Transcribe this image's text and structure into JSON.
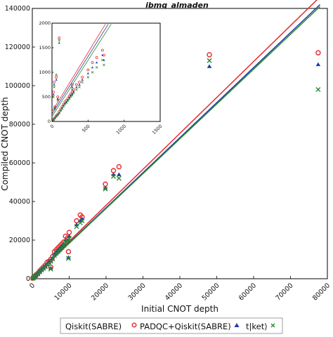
{
  "chart_data": [
    {
      "type": "scatter",
      "title": "ibmq_almaden",
      "xlabel": "Initial CNOT depth",
      "ylabel": "Compiled CNOT depth",
      "xlim": [
        0,
        80000
      ],
      "ylim": [
        0,
        140000
      ],
      "xticks": [
        "0",
        "10000",
        "20000",
        "30000",
        "40000",
        "50000",
        "60000",
        "70000",
        "80000"
      ],
      "yticks": [
        "0",
        "20000",
        "40000",
        "60000",
        "80000",
        "100000",
        "120000",
        "140000"
      ],
      "grid": false,
      "legend_position": "bottom",
      "series": [
        {
          "name": "Qiskit(SABRE)",
          "marker": "circle",
          "color": "#e8292e",
          "points": [
            [
              150,
              300
            ],
            [
              400,
              800
            ],
            [
              700,
              1300
            ],
            [
              1000,
              2000
            ],
            [
              1500,
              2800
            ],
            [
              2000,
              4000
            ],
            [
              2500,
              5000
            ],
            [
              3000,
              6000
            ],
            [
              3500,
              7000
            ],
            [
              4000,
              8500
            ],
            [
              4500,
              9000
            ],
            [
              5000,
              10000
            ],
            [
              5500,
              11500
            ],
            [
              6000,
              14000
            ],
            [
              6500,
              15000
            ],
            [
              7000,
              16000
            ],
            [
              7500,
              17000
            ],
            [
              8000,
              18000
            ],
            [
              8500,
              19000
            ],
            [
              9000,
              22000
            ],
            [
              9500,
              21000
            ],
            [
              10000,
              24000
            ],
            [
              5000,
              6000
            ],
            [
              9800,
              14000
            ],
            [
              12000,
              30000
            ],
            [
              13000,
              33000
            ],
            [
              13500,
              32000
            ],
            [
              19800,
              49000
            ],
            [
              22000,
              56000
            ],
            [
              23500,
              58000
            ],
            [
              48000,
              116000
            ],
            [
              77500,
              117000
            ]
          ]
        },
        {
          "name": "PADQC+Qiskit(SABRE)",
          "marker": "triangle",
          "color": "#1f3aa8",
          "points": [
            [
              150,
              250
            ],
            [
              400,
              700
            ],
            [
              700,
              1200
            ],
            [
              1000,
              1800
            ],
            [
              1500,
              2600
            ],
            [
              2000,
              3700
            ],
            [
              2500,
              4700
            ],
            [
              3000,
              5600
            ],
            [
              3500,
              6500
            ],
            [
              4000,
              7700
            ],
            [
              4500,
              8500
            ],
            [
              5000,
              9500
            ],
            [
              5500,
              10800
            ],
            [
              6000,
              12800
            ],
            [
              6500,
              14000
            ],
            [
              7000,
              15000
            ],
            [
              7500,
              16000
            ],
            [
              8000,
              17000
            ],
            [
              8500,
              18000
            ],
            [
              9000,
              20000
            ],
            [
              9500,
              20000
            ],
            [
              10000,
              22000
            ],
            [
              5000,
              5500
            ],
            [
              9800,
              11000
            ],
            [
              12000,
              28000
            ],
            [
              13000,
              30000
            ],
            [
              13500,
              31000
            ],
            [
              19800,
              47000
            ],
            [
              22000,
              54000
            ],
            [
              23500,
              54000
            ],
            [
              48000,
              110000
            ],
            [
              77500,
              111000
            ]
          ]
        },
        {
          "name": "t|ket⟩",
          "marker": "x",
          "color": "#2d8a2d",
          "points": [
            [
              150,
              220
            ],
            [
              400,
              650
            ],
            [
              700,
              1100
            ],
            [
              1000,
              1700
            ],
            [
              1500,
              2400
            ],
            [
              2000,
              3500
            ],
            [
              2500,
              4500
            ],
            [
              3000,
              5300
            ],
            [
              3500,
              6200
            ],
            [
              4000,
              7300
            ],
            [
              4500,
              8000
            ],
            [
              5000,
              9000
            ],
            [
              5500,
              10200
            ],
            [
              6000,
              12000
            ],
            [
              6500,
              13200
            ],
            [
              7000,
              14200
            ],
            [
              7500,
              15200
            ],
            [
              8000,
              16200
            ],
            [
              8500,
              17200
            ],
            [
              9000,
              19000
            ],
            [
              9500,
              19200
            ],
            [
              10000,
              21000
            ],
            [
              5000,
              5000
            ],
            [
              9800,
              10500
            ],
            [
              12000,
              27000
            ],
            [
              13000,
              29000
            ],
            [
              13500,
              30000
            ],
            [
              19800,
              46500
            ],
            [
              22000,
              53000
            ],
            [
              23500,
              52000
            ],
            [
              48000,
              113000
            ],
            [
              77500,
              98000
            ]
          ]
        }
      ],
      "fit_lines": [
        {
          "color": "#e8292e",
          "x": [
            0,
            78000
          ],
          "y": [
            800,
            146000
          ]
        },
        {
          "color": "#1f3aa8",
          "x": [
            0,
            78000
          ],
          "y": [
            500,
            142000
          ]
        },
        {
          "color": "#2d8a2d",
          "x": [
            0,
            78000
          ],
          "y": [
            300,
            141000
          ]
        }
      ]
    },
    {
      "type": "scatter",
      "title": "",
      "xlim": [
        0,
        1500
      ],
      "ylim": [
        0,
        2000
      ],
      "xticks": [
        "0",
        "500",
        "1000",
        "1500"
      ],
      "yticks": [
        "0",
        "500",
        "1000",
        "1500",
        "2000"
      ],
      "series": [
        {
          "name": "Qiskit(SABRE)",
          "marker": "circle",
          "color": "#e8292e",
          "points": [
            [
              20,
              40
            ],
            [
              40,
              80
            ],
            [
              60,
              120
            ],
            [
              80,
              150
            ],
            [
              100,
              200
            ],
            [
              120,
              250
            ],
            [
              140,
              300
            ],
            [
              160,
              350
            ],
            [
              180,
              400
            ],
            [
              200,
              430
            ],
            [
              220,
              470
            ],
            [
              240,
              520
            ],
            [
              260,
              560
            ],
            [
              280,
              600
            ],
            [
              300,
              650
            ],
            [
              340,
              750
            ],
            [
              380,
              800
            ],
            [
              420,
              900
            ],
            [
              500,
              1050
            ],
            [
              560,
              1200
            ],
            [
              620,
              1300
            ],
            [
              700,
              1450
            ],
            [
              20,
              600
            ],
            [
              30,
              800
            ],
            [
              60,
              900
            ],
            [
              100,
              1700
            ],
            [
              40,
              300
            ],
            [
              80,
              500
            ],
            [
              280,
              750
            ],
            [
              720,
              1350
            ]
          ]
        },
        {
          "name": "PADQC+Qiskit(SABRE)",
          "marker": "triangle",
          "color": "#1f3aa8",
          "points": [
            [
              20,
              35
            ],
            [
              40,
              70
            ],
            [
              60,
              110
            ],
            [
              80,
              140
            ],
            [
              100,
              180
            ],
            [
              120,
              230
            ],
            [
              140,
              280
            ],
            [
              160,
              330
            ],
            [
              180,
              370
            ],
            [
              200,
              400
            ],
            [
              220,
              440
            ],
            [
              240,
              490
            ],
            [
              260,
              530
            ],
            [
              280,
              560
            ],
            [
              300,
              610
            ],
            [
              340,
              700
            ],
            [
              380,
              750
            ],
            [
              420,
              850
            ],
            [
              500,
              980
            ],
            [
              560,
              1100
            ],
            [
              620,
              1200
            ],
            [
              700,
              1350
            ],
            [
              20,
              550
            ],
            [
              30,
              750
            ],
            [
              60,
              850
            ],
            [
              100,
              1600
            ],
            [
              40,
              280
            ],
            [
              80,
              460
            ],
            [
              280,
              700
            ],
            [
              720,
              1250
            ]
          ]
        },
        {
          "name": "t|ket⟩",
          "marker": "x",
          "color": "#2d8a2d",
          "points": [
            [
              20,
              30
            ],
            [
              40,
              65
            ],
            [
              60,
              100
            ],
            [
              80,
              130
            ],
            [
              100,
              170
            ],
            [
              120,
              220
            ],
            [
              140,
              260
            ],
            [
              160,
              310
            ],
            [
              180,
              350
            ],
            [
              200,
              380
            ],
            [
              220,
              420
            ],
            [
              240,
              460
            ],
            [
              260,
              500
            ],
            [
              280,
              530
            ],
            [
              300,
              580
            ],
            [
              340,
              650
            ],
            [
              380,
              700
            ],
            [
              420,
              800
            ],
            [
              500,
              900
            ],
            [
              560,
              1000
            ],
            [
              620,
              1100
            ],
            [
              700,
              1250
            ],
            [
              20,
              500
            ],
            [
              30,
              700
            ],
            [
              60,
              950
            ],
            [
              100,
              1650
            ],
            [
              40,
              260
            ],
            [
              80,
              430
            ],
            [
              280,
              650
            ],
            [
              720,
              1150
            ]
          ]
        }
      ],
      "fit_lines": [
        {
          "color": "#e8292e",
          "x": [
            0,
            740
          ],
          "y": [
            200,
            1980
          ]
        },
        {
          "color": "#1f3aa8",
          "x": [
            0,
            780
          ],
          "y": [
            150,
            1980
          ]
        },
        {
          "color": "#2d8a2d",
          "x": [
            0,
            820
          ],
          "y": [
            100,
            1980
          ]
        }
      ]
    }
  ]
}
